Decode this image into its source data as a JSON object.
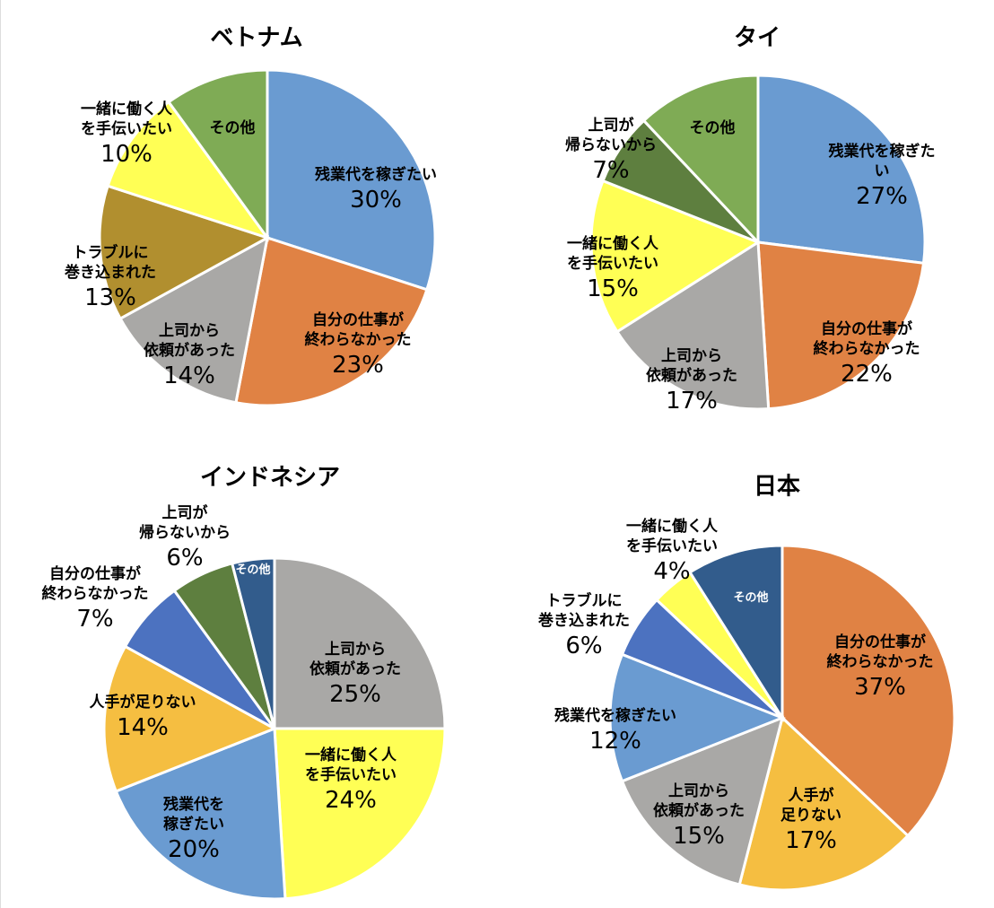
{
  "chart_data": [
    {
      "type": "pie",
      "title": "ベトナム",
      "slices": [
        {
          "label": "残業代を稼ぎたい",
          "value": 30,
          "pct_text": "30%",
          "color": "#6A9BD1"
        },
        {
          "label": "自分の仕事が\n終わらなかった",
          "value": 23,
          "pct_text": "23%",
          "color": "#E08244"
        },
        {
          "label": "上司から\n依頼があった",
          "value": 14,
          "pct_text": "14%",
          "color": "#A9A8A6"
        },
        {
          "label": "トラブルに\n巻き込まれた",
          "value": 13,
          "pct_text": "13%",
          "color": "#B18F2F"
        },
        {
          "label": "一緒に働く人\nを手伝いたい",
          "value": 10,
          "pct_text": "10%",
          "color": "#FFFF55"
        },
        {
          "label": "その他",
          "value": 10,
          "pct_text": null,
          "color": "#7FAB55"
        }
      ]
    },
    {
      "type": "pie",
      "title": "タイ",
      "slices": [
        {
          "label": "残業代を稼ぎたい",
          "value": 27,
          "pct_text": "27%",
          "color": "#6A9BD1"
        },
        {
          "label": "自分の仕事が\n終わらなかった",
          "value": 22,
          "pct_text": "22%",
          "color": "#E08244"
        },
        {
          "label": "上司から\n依頼があった",
          "value": 17,
          "pct_text": "17%",
          "color": "#A9A8A6"
        },
        {
          "label": "一緒に働く人\nを手伝いたい",
          "value": 15,
          "pct_text": "15%",
          "color": "#FFFF55"
        },
        {
          "label": "上司が\n帰らないから",
          "value": 7,
          "pct_text": "7%",
          "color": "#5E7F3F"
        },
        {
          "label": "その他",
          "value": 12,
          "pct_text": null,
          "color": "#7FAB55"
        }
      ]
    },
    {
      "type": "pie",
      "title": "インドネシア",
      "slices": [
        {
          "label": "上司から\n依頼があった",
          "value": 25,
          "pct_text": "25%",
          "color": "#A9A8A6"
        },
        {
          "label": "一緒に働く人\nを手伝いたい",
          "value": 24,
          "pct_text": "24%",
          "color": "#FFFF55"
        },
        {
          "label": "残業代を\n稼ぎたい",
          "value": 20,
          "pct_text": "20%",
          "color": "#6A9BD1"
        },
        {
          "label": "人手が足りない",
          "value": 14,
          "pct_text": "14%",
          "color": "#F5BE41"
        },
        {
          "label": "自分の仕事が\n終わらなかった",
          "value": 7,
          "pct_text": "7%",
          "color": "#4C72C0"
        },
        {
          "label": "上司が\n帰らないから",
          "value": 6,
          "pct_text": "6%",
          "color": "#5E7F3F"
        },
        {
          "label": "その他",
          "value": 4,
          "pct_text": null,
          "color": "#325C8C"
        }
      ]
    },
    {
      "type": "pie",
      "title": "日本",
      "slices": [
        {
          "label": "自分の仕事が\n終わらなかった",
          "value": 37,
          "pct_text": "37%",
          "color": "#E08244"
        },
        {
          "label": "人手が\n足りない",
          "value": 17,
          "pct_text": "17%",
          "color": "#F5BE41"
        },
        {
          "label": "上司から\n依頼があった",
          "value": 15,
          "pct_text": "15%",
          "color": "#A9A8A6"
        },
        {
          "label": "残業代を稼ぎたい",
          "value": 12,
          "pct_text": "12%",
          "color": "#6A9BD1"
        },
        {
          "label": "トラブルに\n巻き込まれた",
          "value": 6,
          "pct_text": "6%",
          "color": "#4C72C0"
        },
        {
          "label": "一緒に働く人\nを手伝いたい",
          "value": 4,
          "pct_text": "4%",
          "color": "#FFFF55"
        },
        {
          "label": "その他",
          "value": 9,
          "pct_text": null,
          "color": "#325C8C"
        }
      ]
    }
  ]
}
